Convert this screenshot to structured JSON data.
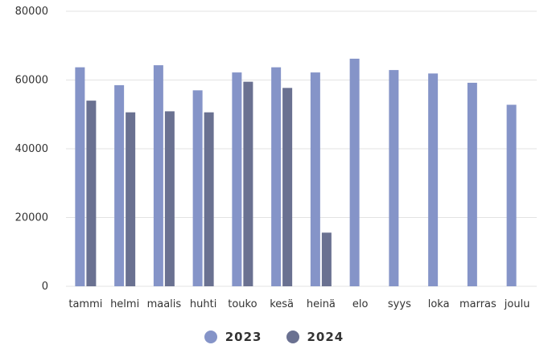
{
  "chart_data": {
    "type": "bar",
    "categories": [
      "tammi",
      "helmi",
      "maalis",
      "huhti",
      "touko",
      "kesä",
      "heinä",
      "elo",
      "syys",
      "loka",
      "marras",
      "joulu"
    ],
    "series": [
      {
        "name": "2023",
        "color": "#8594c8",
        "values": [
          63700,
          58500,
          64300,
          57000,
          62200,
          63700,
          62200,
          66200,
          62900,
          61900,
          59200,
          52800
        ]
      },
      {
        "name": "2024",
        "color": "#6a7191",
        "values": [
          54000,
          50600,
          50900,
          50600,
          59500,
          57700,
          15600,
          null,
          null,
          null,
          null,
          null
        ]
      }
    ],
    "yticks": [
      "0",
      "20000",
      "40000",
      "60000",
      "80000"
    ],
    "ylim": [
      0,
      80000
    ],
    "grid": true,
    "legend_position": "bottom"
  }
}
